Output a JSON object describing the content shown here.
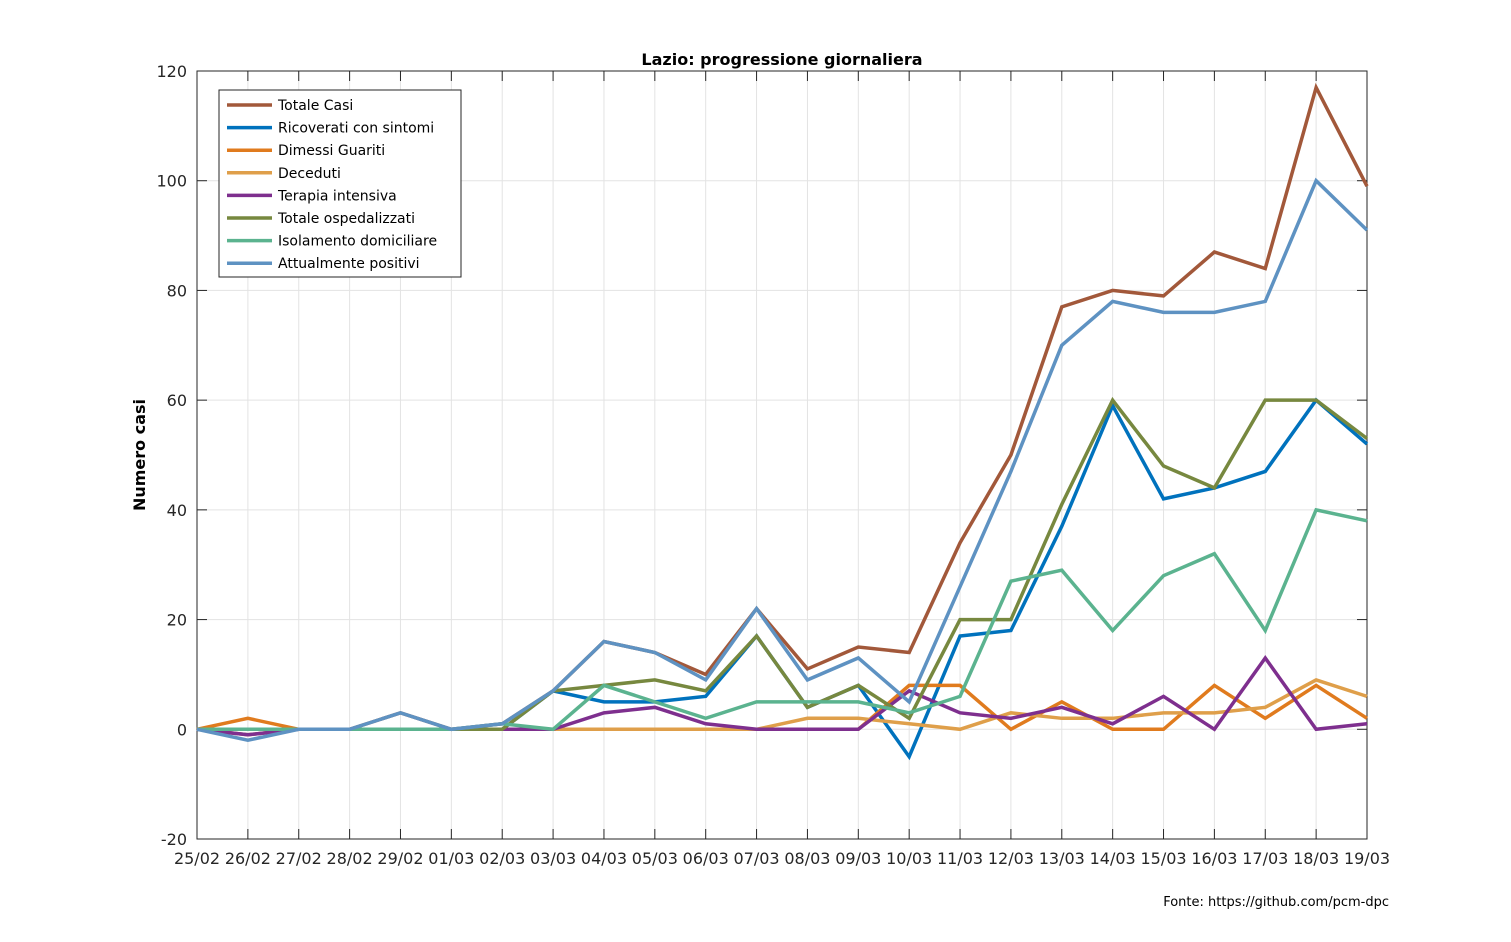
{
  "chart_data": {
    "type": "line",
    "title": "Lazio: progressione giornaliera",
    "xlabel": "",
    "ylabel": "Numero casi",
    "ylim": [
      -20,
      120
    ],
    "yticks": [
      -20,
      0,
      20,
      40,
      60,
      80,
      100,
      120
    ],
    "grid": true,
    "legend_position": "top-left",
    "categories": [
      "25/02",
      "26/02",
      "27/02",
      "28/02",
      "29/02",
      "01/03",
      "02/03",
      "03/03",
      "04/03",
      "05/03",
      "06/03",
      "07/03",
      "08/03",
      "09/03",
      "10/03",
      "11/03",
      "12/03",
      "13/03",
      "14/03",
      "15/03",
      "16/03",
      "17/03",
      "18/03",
      "19/03"
    ],
    "series": [
      {
        "name": "Totale Casi",
        "color": "#A2583A",
        "values": [
          0,
          -1,
          0,
          0,
          3,
          0,
          1,
          7,
          16,
          14,
          10,
          22,
          11,
          15,
          14,
          34,
          50,
          77,
          80,
          79,
          87,
          84,
          117,
          99
        ]
      },
      {
        "name": "Ricoverati con sintomi",
        "color": "#0072BD",
        "values": [
          0,
          0,
          0,
          0,
          0,
          0,
          0,
          7,
          5,
          5,
          6,
          17,
          4,
          8,
          -5,
          17,
          18,
          37,
          59,
          42,
          44,
          47,
          60,
          52
        ]
      },
      {
        "name": "Dimessi Guariti",
        "color": "#E07B1E",
        "values": [
          0,
          2,
          0,
          0,
          0,
          0,
          0,
          0,
          0,
          0,
          0,
          0,
          0,
          0,
          8,
          8,
          0,
          5,
          0,
          0,
          8,
          2,
          8,
          2
        ]
      },
      {
        "name": "Deceduti",
        "color": "#DF9F4A",
        "values": [
          0,
          0,
          0,
          0,
          0,
          0,
          0,
          0,
          0,
          0,
          0,
          0,
          2,
          2,
          1,
          0,
          3,
          2,
          2,
          3,
          3,
          4,
          9,
          6
        ]
      },
      {
        "name": "Terapia intensiva",
        "color": "#7E2F8E",
        "values": [
          0,
          -1,
          0,
          0,
          0,
          0,
          0,
          0,
          3,
          4,
          1,
          0,
          0,
          0,
          7,
          3,
          2,
          4,
          1,
          6,
          0,
          13,
          0,
          1
        ]
      },
      {
        "name": "Totale ospedalizzati",
        "color": "#77883F",
        "values": [
          0,
          0,
          0,
          0,
          0,
          0,
          0,
          7,
          8,
          9,
          7,
          17,
          4,
          8,
          2,
          20,
          20,
          41,
          60,
          48,
          44,
          60,
          60,
          53
        ]
      },
      {
        "name": "Isolamento domiciliare",
        "color": "#5BB38F",
        "values": [
          0,
          0,
          0,
          0,
          0,
          0,
          1,
          0,
          8,
          5,
          2,
          5,
          5,
          5,
          3,
          6,
          27,
          29,
          18,
          28,
          32,
          18,
          40,
          38
        ]
      },
      {
        "name": "Attualmente positivi",
        "color": "#5E92C2",
        "values": [
          0,
          -2,
          0,
          0,
          3,
          0,
          1,
          7,
          16,
          14,
          9,
          22,
          9,
          13,
          5,
          26,
          47,
          70,
          78,
          76,
          76,
          78,
          100,
          91
        ]
      }
    ],
    "source_note": "Fonte: https://github.com/pcm-dpc"
  }
}
